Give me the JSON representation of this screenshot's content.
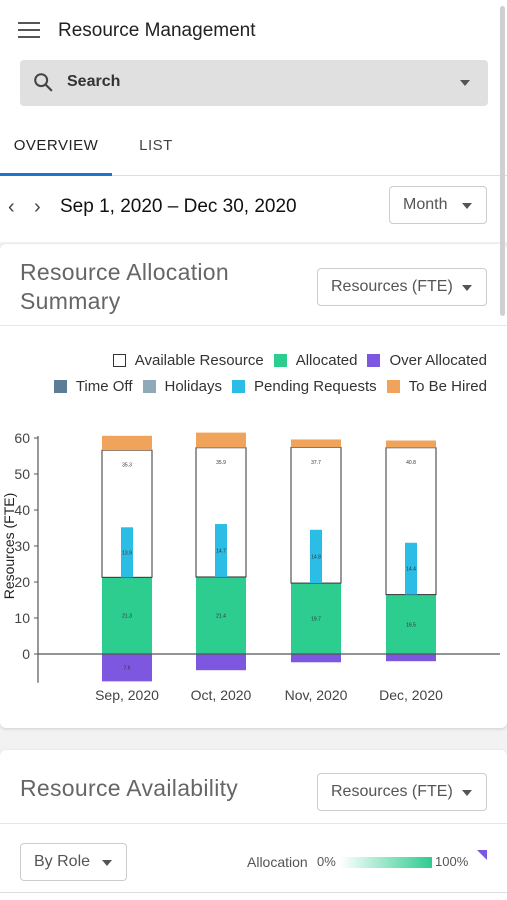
{
  "header": {
    "title": "Resource Management"
  },
  "search": {
    "label": "Search"
  },
  "tabs": [
    {
      "label": "OVERVIEW"
    },
    {
      "label": "LIST"
    }
  ],
  "date_nav": {
    "range": "Sep 1, 2020 – Dec 30, 2020",
    "period": "Month"
  },
  "allocation_card": {
    "title": "Resource Allocation Summary",
    "measure": "Resources (FTE)",
    "legend": [
      {
        "label": "Available Resource",
        "color": "#ffffff",
        "border": "#333333"
      },
      {
        "label": "Allocated",
        "color": "#2dcc8f"
      },
      {
        "label": "Over Allocated",
        "color": "#7e57e0"
      },
      {
        "label": "Time Off",
        "color": "#5b7e96"
      },
      {
        "label": "Holidays",
        "color": "#8fa9b8"
      },
      {
        "label": "Pending Requests",
        "color": "#2bbde5"
      },
      {
        "label": "To Be Hired",
        "color": "#f0a35a"
      }
    ]
  },
  "chart_data": {
    "type": "bar",
    "ylabel": "Resources (FTE)",
    "ylim": [
      -8,
      60
    ],
    "yticks": [
      0,
      10,
      20,
      30,
      40,
      50,
      60
    ],
    "categories": [
      "Sep, 2020",
      "Oct, 2020",
      "Nov, 2020",
      "Dec, 2020"
    ],
    "series": [
      {
        "name": "Allocated",
        "color": "#2dcc8f",
        "values": [
          21.3,
          21.4,
          19.7,
          16.5
        ],
        "labels": [
          "21.3",
          "21.4",
          "19.7",
          "16.5"
        ]
      },
      {
        "name": "Available Resource",
        "color": "#ffffff",
        "values": [
          35.3,
          35.9,
          37.7,
          40.8
        ],
        "labels": [
          "35.3",
          "35.9",
          "37.7",
          "40.8"
        ]
      },
      {
        "name": "To Be Hired",
        "color": "#f0a35a",
        "values": [
          4.0,
          4.2,
          2.2,
          2.0
        ]
      },
      {
        "name": "Over Allocated",
        "color": "#7e57e0",
        "values": [
          -7.6,
          -4.5,
          -2.3,
          -2.0
        ],
        "labels": [
          "7.6",
          "",
          "",
          ""
        ]
      },
      {
        "name": "Pending Requests",
        "color": "#2bbde5",
        "values": [
          13.9,
          14.7,
          14.8,
          14.4
        ],
        "labels": [
          "13.9",
          "14.7",
          "14.8",
          "14.4"
        ]
      }
    ]
  },
  "availability_card": {
    "title": "Resource Availability",
    "measure": "Resources (FTE)",
    "group_by": "By Role",
    "allocation_label": "Allocation",
    "allocation_min": "0%",
    "allocation_max": "100%"
  }
}
